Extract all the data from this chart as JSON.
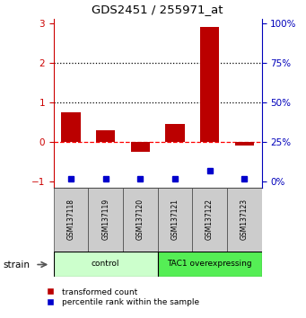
{
  "title": "GDS2451 / 255971_at",
  "samples": [
    "GSM137118",
    "GSM137119",
    "GSM137120",
    "GSM137121",
    "GSM137122",
    "GSM137123"
  ],
  "red_values": [
    0.75,
    0.3,
    -0.25,
    0.45,
    2.9,
    -0.08
  ],
  "blue_values": [
    -0.93,
    -0.93,
    -0.93,
    -0.93,
    -0.72,
    -0.93
  ],
  "ylim": [
    -1.15,
    3.1
  ],
  "yticks_left": [
    -1,
    0,
    1,
    2,
    3
  ],
  "yticks_right": [
    0,
    25,
    50,
    75,
    100
  ],
  "hlines_dotted": [
    1,
    2
  ],
  "hline_dashed": 0,
  "groups": [
    {
      "label": "control",
      "indices": [
        0,
        1,
        2
      ],
      "color": "#ccffcc"
    },
    {
      "label": "TAC1 overexpressing",
      "indices": [
        3,
        4,
        5
      ],
      "color": "#55ee55"
    }
  ],
  "bar_color_red": "#bb0000",
  "bar_color_blue": "#0000cc",
  "bar_width": 0.55,
  "blue_marker_size": 5,
  "sample_box_color": "#cccccc",
  "legend_label_red": "transformed count",
  "legend_label_blue": "percentile rank within the sample",
  "strain_label": "strain",
  "right_yaxis_color": "#0000bb",
  "left_yaxis_color": "#cc0000"
}
